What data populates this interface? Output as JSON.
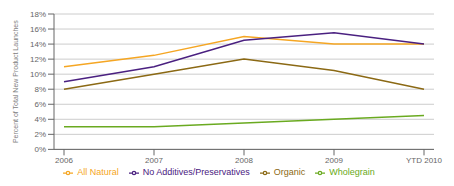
{
  "chart_data": {
    "type": "line",
    "ylabel": "Percent of Total New Product Launches",
    "categories": [
      "2006",
      "2007",
      "2008",
      "2009",
      "YTD 2010"
    ],
    "series": [
      {
        "name": "All Natural",
        "color": "#F5A623",
        "values": [
          11,
          12.5,
          15,
          14,
          14
        ]
      },
      {
        "name": "No Additives/Preservatives",
        "color": "#4A2080",
        "values": [
          9,
          11,
          14.5,
          15.5,
          14
        ]
      },
      {
        "name": "Organic",
        "color": "#8B6914",
        "values": [
          8,
          10,
          12,
          10.5,
          8
        ]
      },
      {
        "name": "Wholegrain",
        "color": "#6AAA20",
        "values": [
          3,
          3,
          3.5,
          4,
          4.5
        ]
      }
    ],
    "ylim": [
      0,
      18
    ],
    "yticks": [
      {
        "value": 0,
        "label": "0%"
      },
      {
        "value": 2,
        "label": "2%"
      },
      {
        "value": 4,
        "label": "4%"
      },
      {
        "value": 6,
        "label": "6%"
      },
      {
        "value": 8,
        "label": "8%"
      },
      {
        "value": 10,
        "label": "10%"
      },
      {
        "value": 12,
        "label": "12%"
      },
      {
        "value": 14,
        "label": "14%"
      },
      {
        "value": 16,
        "label": "16%"
      },
      {
        "value": 18,
        "label": "18%"
      }
    ],
    "grid": true,
    "legend": "bottom"
  }
}
